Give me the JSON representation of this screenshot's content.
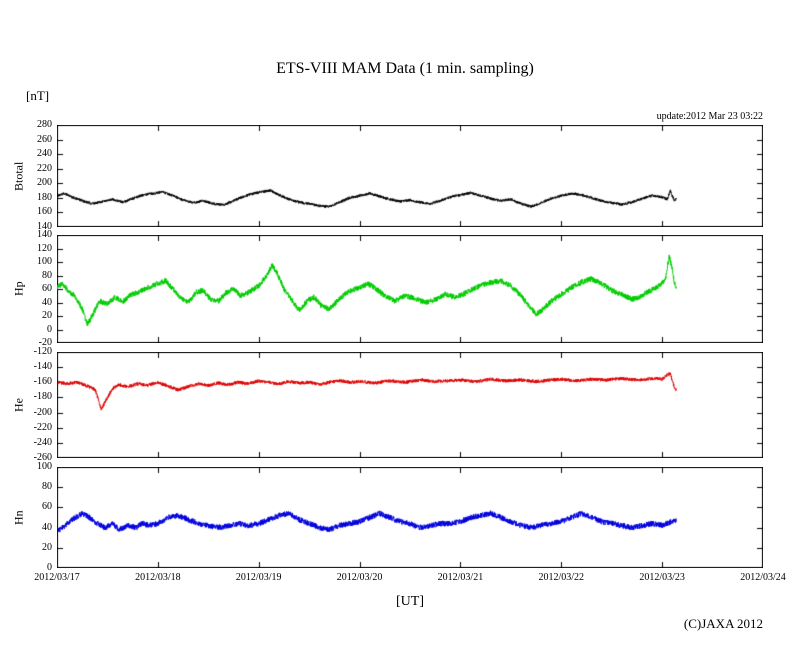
{
  "page": {
    "title": "ETS-VIII MAM Data (1 min. sampling)",
    "y_unit_label": "[nT]",
    "x_unit_label": "[UT]",
    "update_note": "update:2012 Mar 23 03:22",
    "copyright": "(C)JAXA 2012"
  },
  "chart_data": {
    "type": "line",
    "title": "ETS-VIII MAM Data (1 min. sampling)",
    "y_unit": "[nT]",
    "x_axis": {
      "label": "[UT]",
      "tick_labels": [
        "2012/03/17",
        "2012/03/18",
        "2012/03/19",
        "2012/03/20",
        "2012/03/21",
        "2012/03/22",
        "2012/03/23",
        "2012/03/24"
      ],
      "range_days": [
        0,
        7
      ],
      "data_end_day": 6.14
    },
    "grid": false,
    "legend": "none",
    "panels": [
      {
        "name": "Btotal",
        "color": "#000000",
        "ylim": [
          140,
          280
        ],
        "yticks": [
          280,
          260,
          240,
          220,
          200,
          180,
          160,
          140
        ],
        "noise": 1.8,
        "points": [
          [
            0,
            183
          ],
          [
            0.08,
            186
          ],
          [
            0.15,
            181
          ],
          [
            0.25,
            176
          ],
          [
            0.35,
            172
          ],
          [
            0.45,
            175
          ],
          [
            0.55,
            178
          ],
          [
            0.65,
            174
          ],
          [
            0.75,
            179
          ],
          [
            0.85,
            184
          ],
          [
            0.95,
            186
          ],
          [
            1.05,
            188
          ],
          [
            1.15,
            183
          ],
          [
            1.25,
            177
          ],
          [
            1.35,
            173
          ],
          [
            1.45,
            176
          ],
          [
            1.55,
            172
          ],
          [
            1.65,
            170
          ],
          [
            1.75,
            176
          ],
          [
            1.85,
            182
          ],
          [
            1.95,
            186
          ],
          [
            2.05,
            189
          ],
          [
            2.12,
            190
          ],
          [
            2.2,
            184
          ],
          [
            2.3,
            178
          ],
          [
            2.4,
            174
          ],
          [
            2.5,
            172
          ],
          [
            2.6,
            169
          ],
          [
            2.7,
            168
          ],
          [
            2.8,
            174
          ],
          [
            2.9,
            180
          ],
          [
            3,
            183
          ],
          [
            3.1,
            186
          ],
          [
            3.2,
            182
          ],
          [
            3.3,
            178
          ],
          [
            3.4,
            175
          ],
          [
            3.5,
            177
          ],
          [
            3.6,
            174
          ],
          [
            3.7,
            172
          ],
          [
            3.8,
            176
          ],
          [
            3.9,
            181
          ],
          [
            4,
            184
          ],
          [
            4.1,
            187
          ],
          [
            4.2,
            183
          ],
          [
            4.3,
            179
          ],
          [
            4.4,
            176
          ],
          [
            4.5,
            178
          ],
          [
            4.6,
            172
          ],
          [
            4.7,
            168
          ],
          [
            4.8,
            173
          ],
          [
            4.9,
            179
          ],
          [
            5,
            183
          ],
          [
            5.1,
            186
          ],
          [
            5.2,
            184
          ],
          [
            5.3,
            180
          ],
          [
            5.4,
            176
          ],
          [
            5.5,
            173
          ],
          [
            5.6,
            171
          ],
          [
            5.7,
            174
          ],
          [
            5.8,
            179
          ],
          [
            5.9,
            183
          ],
          [
            6,
            181
          ],
          [
            6.05,
            178
          ],
          [
            6.08,
            190
          ],
          [
            6.1,
            183
          ],
          [
            6.12,
            176
          ],
          [
            6.14,
            179
          ]
        ]
      },
      {
        "name": "Hp",
        "color": "#00cc00",
        "ylim": [
          -20,
          140
        ],
        "yticks": [
          140,
          120,
          100,
          80,
          60,
          40,
          20,
          0,
          -20
        ],
        "noise": 4.0,
        "points": [
          [
            0,
            62
          ],
          [
            0.06,
            68
          ],
          [
            0.12,
            55
          ],
          [
            0.18,
            50
          ],
          [
            0.25,
            30
          ],
          [
            0.3,
            8
          ],
          [
            0.35,
            20
          ],
          [
            0.42,
            42
          ],
          [
            0.5,
            38
          ],
          [
            0.58,
            48
          ],
          [
            0.65,
            40
          ],
          [
            0.72,
            50
          ],
          [
            0.8,
            55
          ],
          [
            0.9,
            62
          ],
          [
            1,
            68
          ],
          [
            1.08,
            72
          ],
          [
            1.15,
            60
          ],
          [
            1.22,
            48
          ],
          [
            1.3,
            40
          ],
          [
            1.38,
            55
          ],
          [
            1.45,
            58
          ],
          [
            1.52,
            45
          ],
          [
            1.6,
            42
          ],
          [
            1.68,
            55
          ],
          [
            1.75,
            60
          ],
          [
            1.82,
            50
          ],
          [
            1.9,
            55
          ],
          [
            2,
            65
          ],
          [
            2.08,
            80
          ],
          [
            2.13,
            95
          ],
          [
            2.18,
            85
          ],
          [
            2.25,
            60
          ],
          [
            2.32,
            45
          ],
          [
            2.4,
            28
          ],
          [
            2.48,
            42
          ],
          [
            2.55,
            48
          ],
          [
            2.62,
            35
          ],
          [
            2.7,
            30
          ],
          [
            2.78,
            42
          ],
          [
            2.85,
            52
          ],
          [
            2.92,
            58
          ],
          [
            3,
            62
          ],
          [
            3.08,
            68
          ],
          [
            3.15,
            62
          ],
          [
            3.25,
            50
          ],
          [
            3.35,
            42
          ],
          [
            3.45,
            50
          ],
          [
            3.55,
            46
          ],
          [
            3.65,
            40
          ],
          [
            3.75,
            44
          ],
          [
            3.85,
            52
          ],
          [
            3.95,
            48
          ],
          [
            4,
            50
          ],
          [
            4.1,
            58
          ],
          [
            4.2,
            65
          ],
          [
            4.3,
            70
          ],
          [
            4.4,
            72
          ],
          [
            4.5,
            65
          ],
          [
            4.6,
            50
          ],
          [
            4.68,
            35
          ],
          [
            4.75,
            22
          ],
          [
            4.82,
            30
          ],
          [
            4.9,
            42
          ],
          [
            5,
            52
          ],
          [
            5.1,
            62
          ],
          [
            5.2,
            70
          ],
          [
            5.3,
            75
          ],
          [
            5.4,
            68
          ],
          [
            5.5,
            58
          ],
          [
            5.6,
            52
          ],
          [
            5.7,
            45
          ],
          [
            5.78,
            48
          ],
          [
            5.85,
            55
          ],
          [
            5.92,
            60
          ],
          [
            6,
            68
          ],
          [
            6.04,
            80
          ],
          [
            6.07,
            108
          ],
          [
            6.1,
            90
          ],
          [
            6.12,
            70
          ],
          [
            6.14,
            62
          ]
        ]
      },
      {
        "name": "He",
        "color": "#dd0000",
        "ylim": [
          -260,
          -120
        ],
        "yticks": [
          -120,
          -140,
          -160,
          -180,
          -200,
          -220,
          -240,
          -260
        ],
        "noise": 2.2,
        "points": [
          [
            0,
            -160
          ],
          [
            0.1,
            -162
          ],
          [
            0.2,
            -160
          ],
          [
            0.3,
            -165
          ],
          [
            0.38,
            -170
          ],
          [
            0.44,
            -196
          ],
          [
            0.5,
            -180
          ],
          [
            0.55,
            -168
          ],
          [
            0.62,
            -163
          ],
          [
            0.7,
            -166
          ],
          [
            0.8,
            -162
          ],
          [
            0.9,
            -164
          ],
          [
            1,
            -160
          ],
          [
            1.1,
            -165
          ],
          [
            1.2,
            -170
          ],
          [
            1.3,
            -166
          ],
          [
            1.4,
            -162
          ],
          [
            1.5,
            -164
          ],
          [
            1.6,
            -161
          ],
          [
            1.7,
            -163
          ],
          [
            1.8,
            -160
          ],
          [
            1.9,
            -162
          ],
          [
            2,
            -158
          ],
          [
            2.1,
            -160
          ],
          [
            2.2,
            -162
          ],
          [
            2.3,
            -159
          ],
          [
            2.4,
            -161
          ],
          [
            2.5,
            -160
          ],
          [
            2.6,
            -163
          ],
          [
            2.7,
            -160
          ],
          [
            2.8,
            -158
          ],
          [
            2.9,
            -160
          ],
          [
            3,
            -159
          ],
          [
            3.15,
            -161
          ],
          [
            3.3,
            -158
          ],
          [
            3.45,
            -160
          ],
          [
            3.6,
            -157
          ],
          [
            3.75,
            -159
          ],
          [
            3.9,
            -158
          ],
          [
            4,
            -157
          ],
          [
            4.15,
            -159
          ],
          [
            4.3,
            -156
          ],
          [
            4.45,
            -158
          ],
          [
            4.6,
            -157
          ],
          [
            4.75,
            -159
          ],
          [
            4.9,
            -157
          ],
          [
            5,
            -156
          ],
          [
            5.15,
            -158
          ],
          [
            5.3,
            -156
          ],
          [
            5.45,
            -157
          ],
          [
            5.6,
            -155
          ],
          [
            5.75,
            -157
          ],
          [
            5.9,
            -155
          ],
          [
            6,
            -156
          ],
          [
            6.05,
            -150
          ],
          [
            6.08,
            -148
          ],
          [
            6.1,
            -158
          ],
          [
            6.12,
            -166
          ],
          [
            6.14,
            -170
          ]
        ]
      },
      {
        "name": "Hn",
        "color": "#0000dd",
        "ylim": [
          0,
          100
        ],
        "yticks": [
          100,
          80,
          60,
          40,
          20,
          0
        ],
        "noise": 2.8,
        "points": [
          [
            0,
            36
          ],
          [
            0.08,
            42
          ],
          [
            0.15,
            48
          ],
          [
            0.25,
            54
          ],
          [
            0.32,
            50
          ],
          [
            0.4,
            44
          ],
          [
            0.48,
            40
          ],
          [
            0.55,
            44
          ],
          [
            0.62,
            38
          ],
          [
            0.7,
            42
          ],
          [
            0.78,
            40
          ],
          [
            0.85,
            44
          ],
          [
            0.92,
            42
          ],
          [
            1,
            44
          ],
          [
            1.1,
            50
          ],
          [
            1.2,
            52
          ],
          [
            1.3,
            48
          ],
          [
            1.4,
            44
          ],
          [
            1.5,
            42
          ],
          [
            1.6,
            40
          ],
          [
            1.7,
            42
          ],
          [
            1.8,
            44
          ],
          [
            1.9,
            42
          ],
          [
            2,
            44
          ],
          [
            2.1,
            48
          ],
          [
            2.2,
            52
          ],
          [
            2.3,
            54
          ],
          [
            2.4,
            48
          ],
          [
            2.5,
            44
          ],
          [
            2.6,
            40
          ],
          [
            2.7,
            38
          ],
          [
            2.8,
            42
          ],
          [
            2.9,
            44
          ],
          [
            3,
            46
          ],
          [
            3.1,
            50
          ],
          [
            3.2,
            54
          ],
          [
            3.3,
            50
          ],
          [
            3.4,
            46
          ],
          [
            3.5,
            44
          ],
          [
            3.6,
            40
          ],
          [
            3.7,
            42
          ],
          [
            3.8,
            44
          ],
          [
            3.9,
            44
          ],
          [
            4,
            46
          ],
          [
            4.1,
            50
          ],
          [
            4.2,
            52
          ],
          [
            4.3,
            54
          ],
          [
            4.4,
            50
          ],
          [
            4.5,
            46
          ],
          [
            4.6,
            42
          ],
          [
            4.7,
            40
          ],
          [
            4.8,
            42
          ],
          [
            4.9,
            44
          ],
          [
            5,
            46
          ],
          [
            5.1,
            50
          ],
          [
            5.2,
            54
          ],
          [
            5.3,
            50
          ],
          [
            5.4,
            46
          ],
          [
            5.5,
            44
          ],
          [
            5.6,
            42
          ],
          [
            5.7,
            40
          ],
          [
            5.8,
            42
          ],
          [
            5.9,
            44
          ],
          [
            6,
            42
          ],
          [
            6.05,
            44
          ],
          [
            6.1,
            46
          ],
          [
            6.14,
            48
          ]
        ]
      }
    ]
  }
}
